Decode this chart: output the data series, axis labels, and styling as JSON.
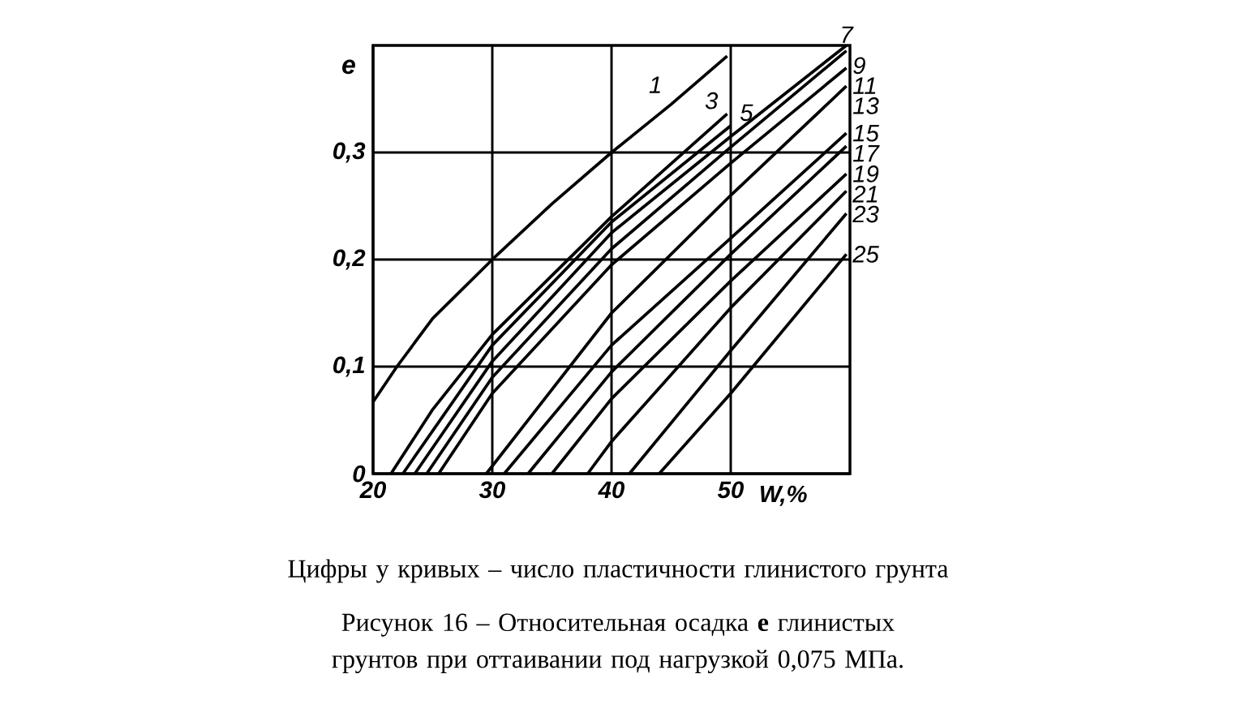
{
  "chart_data": {
    "type": "line",
    "xlabel": "W,%",
    "ylabel": "e",
    "xlim": [
      20,
      60
    ],
    "ylim": [
      0,
      0.4
    ],
    "xticks": [
      20,
      30,
      40,
      50
    ],
    "yticks": [
      0,
      {
        "value": 0.1,
        "label": "0,1"
      },
      {
        "value": 0.2,
        "label": "0,2"
      },
      {
        "value": 0.3,
        "label": "0,3"
      }
    ],
    "grid": true,
    "marker": "none",
    "line_style": "solid",
    "series": [
      {
        "name": "1",
        "color": "#000000",
        "x": [
          20,
          22,
          25,
          30,
          35,
          40,
          45,
          49.7
        ],
        "values": [
          0.067,
          0.1,
          0.145,
          0.2,
          0.252,
          0.3,
          0.345,
          0.39
        ]
      },
      {
        "name": "3",
        "color": "#000000",
        "x": [
          21.5,
          25,
          30,
          40,
          49.7
        ],
        "values": [
          0,
          0.06,
          0.13,
          0.24,
          0.336
        ]
      },
      {
        "name": "5",
        "color": "#000000",
        "x": [
          22.5,
          30,
          40,
          50
        ],
        "values": [
          0,
          0.12,
          0.235,
          0.325
        ]
      },
      {
        "name": "7",
        "color": "#000000",
        "x": [
          23.5,
          30,
          40,
          50,
          59.7
        ],
        "values": [
          0,
          0.105,
          0.225,
          0.315,
          0.4
        ]
      },
      {
        "name": "9",
        "color": "#000000",
        "x": [
          24.5,
          30,
          40,
          50,
          59.7
        ],
        "values": [
          0,
          0.09,
          0.21,
          0.305,
          0.395
        ]
      },
      {
        "name": "11",
        "color": "#000000",
        "x": [
          25.5,
          30,
          40,
          50,
          59.7
        ],
        "values": [
          0,
          0.075,
          0.195,
          0.29,
          0.379
        ]
      },
      {
        "name": "13",
        "color": "#000000",
        "x": [
          29.5,
          40,
          50,
          59.7
        ],
        "values": [
          0,
          0.15,
          0.26,
          0.362
        ]
      },
      {
        "name": "15",
        "color": "#000000",
        "x": [
          31,
          40,
          50,
          59.7
        ],
        "values": [
          0,
          0.12,
          0.22,
          0.318
        ]
      },
      {
        "name": "17",
        "color": "#000000",
        "x": [
          33,
          40,
          50,
          59.7
        ],
        "values": [
          0,
          0.095,
          0.205,
          0.306
        ]
      },
      {
        "name": "19",
        "color": "#000000",
        "x": [
          35,
          40,
          50,
          59.7
        ],
        "values": [
          0,
          0.07,
          0.18,
          0.28
        ]
      },
      {
        "name": "21",
        "color": "#000000",
        "x": [
          38,
          40,
          50,
          59.7
        ],
        "values": [
          0,
          0.03,
          0.155,
          0.264
        ]
      },
      {
        "name": "23",
        "color": "#000000",
        "x": [
          41.5,
          50,
          59.7
        ],
        "values": [
          0,
          0.115,
          0.243
        ]
      },
      {
        "name": "25",
        "color": "#000000",
        "x": [
          44,
          50,
          59.7
        ],
        "values": [
          0,
          0.075,
          0.205
        ]
      }
    ],
    "annotations": [
      "Цифры у кривых – число пластичности глинистого грунта",
      "Рисунок 16 –  Относительная осадка **e** глинистых грунтов при оттаивании под нагрузкой 0,075 МПа."
    ]
  }
}
